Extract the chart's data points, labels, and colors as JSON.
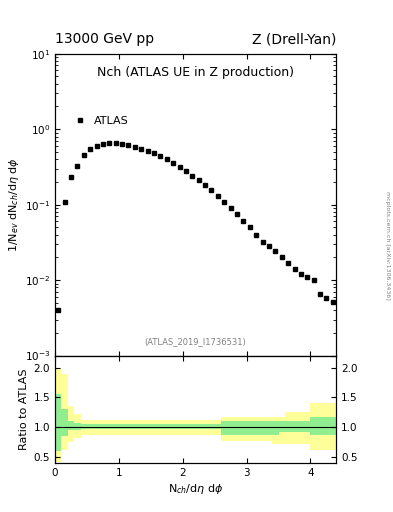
{
  "title_left": "13000 GeV pp",
  "title_right": "Z (Drell-Yan)",
  "plot_title": "Nch (ATLAS UE in Z production)",
  "legend_label": "ATLAS",
  "ylabel_main": "1/N$_{ev}$ dN$_{ch}$/d$\\eta$ d$\\phi$",
  "ylabel_ratio": "Ratio to ATLAS",
  "xlabel": "N$_{ch}$/d$\\eta$ d$\\phi$",
  "watermark": "(ATLAS_2019_I1736531)",
  "side_text": "mcplots.cern.ch [arXiv:1306.3436]",
  "main_data_x": [
    0.05,
    0.15,
    0.25,
    0.35,
    0.45,
    0.55,
    0.65,
    0.75,
    0.85,
    0.95,
    1.05,
    1.15,
    1.25,
    1.35,
    1.45,
    1.55,
    1.65,
    1.75,
    1.85,
    1.95,
    2.05,
    2.15,
    2.25,
    2.35,
    2.45,
    2.55,
    2.65,
    2.75,
    2.85,
    2.95,
    3.05,
    3.15,
    3.25,
    3.35,
    3.45,
    3.55,
    3.65,
    3.75,
    3.85,
    3.95,
    4.05,
    4.15,
    4.25,
    4.35
  ],
  "main_data_y": [
    0.004,
    0.11,
    0.23,
    0.33,
    0.45,
    0.55,
    0.6,
    0.63,
    0.65,
    0.65,
    0.64,
    0.62,
    0.59,
    0.55,
    0.52,
    0.48,
    0.44,
    0.4,
    0.36,
    0.32,
    0.28,
    0.24,
    0.21,
    0.18,
    0.155,
    0.132,
    0.11,
    0.09,
    0.075,
    0.06,
    0.05,
    0.04,
    0.032,
    0.028,
    0.024,
    0.02,
    0.017,
    0.014,
    0.012,
    0.011,
    0.01,
    0.0065,
    0.0058,
    0.0052
  ],
  "ratio_x_edges": [
    0.0,
    0.1,
    0.2,
    0.3,
    0.4,
    0.5,
    0.6,
    0.7,
    0.8,
    0.9,
    1.0,
    1.1,
    1.2,
    1.3,
    1.4,
    1.5,
    1.6,
    1.7,
    1.8,
    1.9,
    2.0,
    2.1,
    2.2,
    2.3,
    2.4,
    2.5,
    2.6,
    2.7,
    2.8,
    2.9,
    3.0,
    3.1,
    3.2,
    3.3,
    3.4,
    3.5,
    3.6,
    3.7,
    3.8,
    3.9,
    4.0,
    4.1,
    4.2,
    4.3,
    4.4
  ],
  "green_band_lo": [
    0.6,
    0.85,
    0.95,
    0.95,
    0.97,
    0.97,
    0.97,
    0.97,
    0.97,
    0.97,
    0.97,
    0.97,
    0.97,
    0.97,
    0.97,
    0.97,
    0.97,
    0.97,
    0.97,
    0.97,
    0.97,
    0.97,
    0.97,
    0.97,
    0.97,
    0.97,
    0.87,
    0.87,
    0.87,
    0.87,
    0.87,
    0.87,
    0.87,
    0.87,
    0.87,
    0.92,
    0.92,
    0.92,
    0.92,
    0.92,
    0.87,
    0.87,
    0.87,
    0.87
  ],
  "green_band_hi": [
    1.55,
    1.3,
    1.1,
    1.07,
    1.05,
    1.05,
    1.05,
    1.05,
    1.05,
    1.05,
    1.05,
    1.05,
    1.05,
    1.05,
    1.05,
    1.05,
    1.05,
    1.05,
    1.05,
    1.05,
    1.05,
    1.05,
    1.05,
    1.05,
    1.05,
    1.05,
    1.1,
    1.1,
    1.1,
    1.1,
    1.1,
    1.1,
    1.1,
    1.1,
    1.1,
    1.1,
    1.1,
    1.1,
    1.1,
    1.1,
    1.18,
    1.18,
    1.18,
    1.18
  ],
  "yellow_band_lo": [
    0.43,
    0.62,
    0.75,
    0.82,
    0.87,
    0.88,
    0.88,
    0.88,
    0.88,
    0.88,
    0.88,
    0.88,
    0.88,
    0.88,
    0.88,
    0.88,
    0.88,
    0.88,
    0.88,
    0.88,
    0.88,
    0.88,
    0.88,
    0.88,
    0.88,
    0.88,
    0.78,
    0.78,
    0.78,
    0.78,
    0.78,
    0.78,
    0.78,
    0.78,
    0.72,
    0.72,
    0.72,
    0.72,
    0.72,
    0.72,
    0.62,
    0.62,
    0.62,
    0.62
  ],
  "yellow_band_hi": [
    2.0,
    1.9,
    1.35,
    1.22,
    1.12,
    1.12,
    1.12,
    1.12,
    1.12,
    1.12,
    1.12,
    1.12,
    1.12,
    1.12,
    1.12,
    1.12,
    1.12,
    1.12,
    1.12,
    1.12,
    1.12,
    1.12,
    1.12,
    1.12,
    1.12,
    1.12,
    1.18,
    1.18,
    1.18,
    1.18,
    1.18,
    1.18,
    1.18,
    1.18,
    1.18,
    1.18,
    1.25,
    1.25,
    1.25,
    1.25,
    1.4,
    1.4,
    1.4,
    1.4
  ],
  "xlim": [
    0.0,
    4.4
  ],
  "ylim_main": [
    0.001,
    10
  ],
  "ylim_ratio": [
    0.4,
    2.2
  ],
  "ratio_yticks": [
    0.5,
    1.0,
    1.5,
    2.0
  ],
  "marker_color": "black",
  "marker": "s",
  "marker_size": 3.5,
  "green_color": "#90EE90",
  "yellow_color": "#FFFF99",
  "bg_color": "white",
  "title_fontsize": 10,
  "plot_title_fontsize": 9,
  "label_fontsize": 8,
  "tick_fontsize": 7.5,
  "watermark_fontsize": 6,
  "side_fontsize": 4.5
}
